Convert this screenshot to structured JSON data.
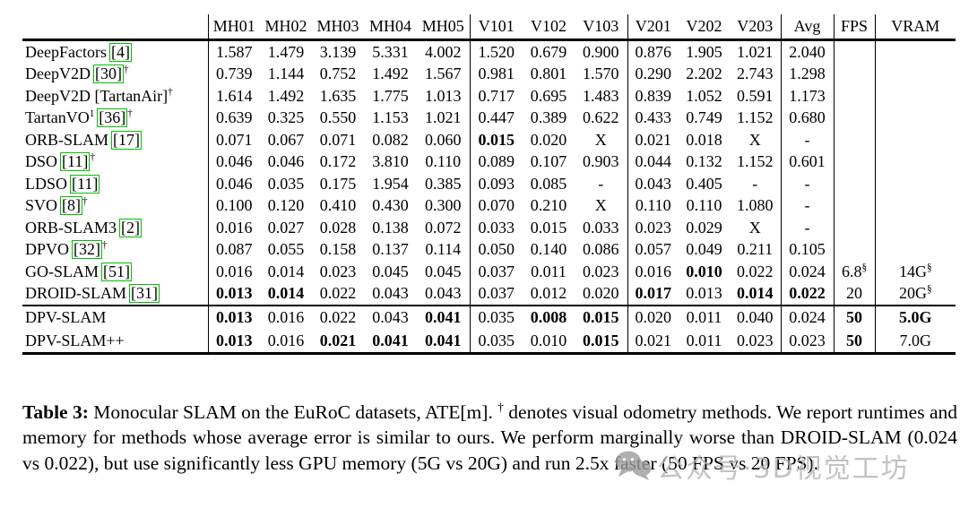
{
  "table": {
    "citation_box_color": "#00bf00",
    "columns": [
      "MH01",
      "MH02",
      "MH03",
      "MH04",
      "MH05",
      "V101",
      "V102",
      "V103",
      "V201",
      "V202",
      "V203",
      "Avg",
      "FPS",
      "VRAM"
    ],
    "sections": [
      {
        "rows": [
          {
            "name": "DeepFactors",
            "sup": "",
            "cite": "[4]",
            "dagger": false,
            "values": [
              "1.587",
              "1.479",
              "3.139",
              "5.331",
              "4.002",
              "1.520",
              "0.679",
              "0.900",
              "0.876",
              "1.905",
              "1.021",
              "2.040",
              "",
              ""
            ],
            "bold": []
          },
          {
            "name": "DeepV2D",
            "sup": "",
            "cite": "[30]",
            "dagger": true,
            "values": [
              "0.739",
              "1.144",
              "0.752",
              "1.492",
              "1.567",
              "0.981",
              "0.801",
              "1.570",
              "0.290",
              "2.202",
              "2.743",
              "1.298",
              "",
              ""
            ],
            "bold": []
          },
          {
            "name": "DeepV2D [TartanAir]",
            "sup": "",
            "cite": "",
            "dagger": true,
            "values": [
              "1.614",
              "1.492",
              "1.635",
              "1.775",
              "1.013",
              "0.717",
              "0.695",
              "1.483",
              "0.839",
              "1.052",
              "0.591",
              "1.173",
              "",
              ""
            ],
            "bold": []
          },
          {
            "name": "TartanVO",
            "sup": "1",
            "cite": "[36]",
            "dagger": true,
            "values": [
              "0.639",
              "0.325",
              "0.550",
              "1.153",
              "1.021",
              "0.447",
              "0.389",
              "0.622",
              "0.433",
              "0.749",
              "1.152",
              "0.680",
              "",
              ""
            ],
            "bold": []
          },
          {
            "name": "ORB-SLAM",
            "sup": "",
            "cite": "[17]",
            "dagger": false,
            "values": [
              "0.071",
              "0.067",
              "0.071",
              "0.082",
              "0.060",
              "0.015",
              "0.020",
              "X",
              "0.021",
              "0.018",
              "X",
              "-",
              "",
              ""
            ],
            "bold": [
              5
            ]
          },
          {
            "name": "DSO",
            "sup": "",
            "cite": "[11]",
            "dagger": true,
            "values": [
              "0.046",
              "0.046",
              "0.172",
              "3.810",
              "0.110",
              "0.089",
              "0.107",
              "0.903",
              "0.044",
              "0.132",
              "1.152",
              "0.601",
              "",
              ""
            ],
            "bold": []
          },
          {
            "name": "LDSO",
            "sup": "",
            "cite": "[11]",
            "dagger": false,
            "values": [
              "0.046",
              "0.035",
              "0.175",
              "1.954",
              "0.385",
              "0.093",
              "0.085",
              "-",
              "0.043",
              "0.405",
              "-",
              "-",
              "",
              ""
            ],
            "bold": []
          },
          {
            "name": "SVO",
            "sup": "",
            "cite": "[8]",
            "dagger": true,
            "values": [
              "0.100",
              "0.120",
              "0.410",
              "0.430",
              "0.300",
              "0.070",
              "0.210",
              "X",
              "0.110",
              "0.110",
              "1.080",
              "-",
              "",
              ""
            ],
            "bold": []
          },
          {
            "name": "ORB-SLAM3",
            "sup": "",
            "cite": "[2]",
            "dagger": false,
            "values": [
              "0.016",
              "0.027",
              "0.028",
              "0.138",
              "0.072",
              "0.033",
              "0.015",
              "0.033",
              "0.023",
              "0.029",
              "X",
              "-",
              "",
              ""
            ],
            "bold": []
          },
          {
            "name": "DPVO",
            "sup": "",
            "cite": "[32]",
            "dagger": true,
            "values": [
              "0.087",
              "0.055",
              "0.158",
              "0.137",
              "0.114",
              "0.050",
              "0.140",
              "0.086",
              "0.057",
              "0.049",
              "0.211",
              "0.105",
              "",
              ""
            ],
            "bold": []
          },
          {
            "name": "GO-SLAM",
            "sup": "",
            "cite": "[51]",
            "dagger": false,
            "values": [
              "0.016",
              "0.014",
              "0.023",
              "0.045",
              "0.045",
              "0.037",
              "0.011",
              "0.023",
              "0.016",
              "0.010",
              "0.022",
              "0.024",
              "6.8§",
              "14G§"
            ],
            "bold": [
              9
            ]
          },
          {
            "name": "DROID-SLAM",
            "sup": "",
            "cite": "[31]",
            "dagger": false,
            "values": [
              "0.013",
              "0.014",
              "0.022",
              "0.043",
              "0.043",
              "0.037",
              "0.012",
              "0.020",
              "0.017",
              "0.013",
              "0.014",
              "0.022",
              "20",
              "20G§"
            ],
            "bold": [
              0,
              1,
              8,
              10,
              11
            ]
          }
        ]
      },
      {
        "rows": [
          {
            "name": "DPV-SLAM",
            "sup": "",
            "cite": "",
            "dagger": false,
            "values": [
              "0.013",
              "0.016",
              "0.022",
              "0.043",
              "0.041",
              "0.035",
              "0.008",
              "0.015",
              "0.020",
              "0.011",
              "0.040",
              "0.024",
              "50",
              "5.0G"
            ],
            "bold": [
              0,
              4,
              6,
              7,
              12,
              13
            ]
          },
          {
            "name": "DPV-SLAM++",
            "sup": "",
            "cite": "",
            "dagger": false,
            "values": [
              "0.013",
              "0.016",
              "0.021",
              "0.041",
              "0.041",
              "0.035",
              "0.010",
              "0.015",
              "0.021",
              "0.011",
              "0.023",
              "0.023",
              "50",
              "7.0G"
            ],
            "bold": [
              0,
              2,
              3,
              4,
              7,
              12
            ]
          }
        ]
      }
    ]
  },
  "caption": {
    "label": "Table 3:",
    "part1": " Monocular SLAM on the EuRoC datasets, ATE[m]. ",
    "dagger": "†",
    "part2": " denotes visual odometry methods. We report runtimes and memory for methods whose average error is similar to ours. We perform marginally worse than DROID-SLAM (0.024 vs 0.022), but use significantly less GPU memory (5G vs 20G) and run 2.5x faster (50 FPS vs 20 FPS)."
  },
  "watermark": {
    "icon": "wechat-bubbles-icon",
    "text": "公众号·3D视觉工坊",
    "color": "#b3b3b3"
  }
}
